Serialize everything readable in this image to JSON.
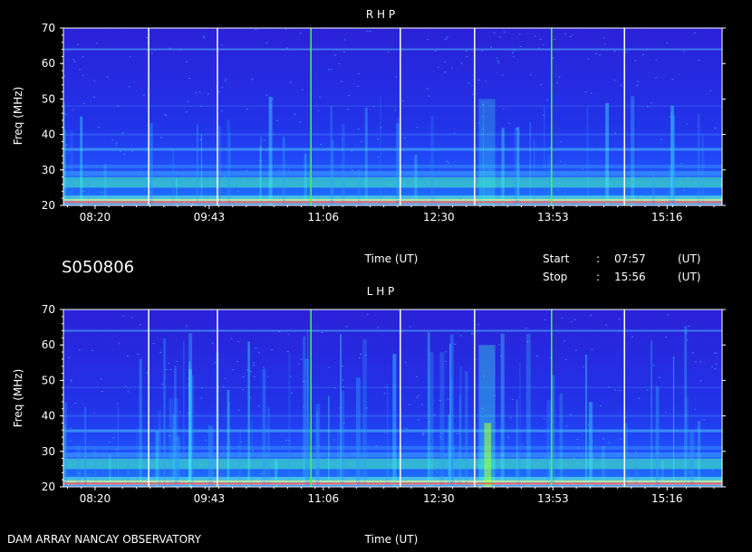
{
  "header": {
    "event_id": "S050806",
    "start_label": "Start",
    "start_sep": ":",
    "start_time": "07:57",
    "start_unit": "(UT)",
    "stop_label": "Stop",
    "stop_sep": ":",
    "stop_time": "15:56",
    "stop_unit": "(UT)"
  },
  "footer": {
    "credit": "DAM ARRAY  NANCAY OBSERVATORY"
  },
  "colors": {
    "background": "#000000",
    "spectrum_base": "#2a2ad8",
    "axis": "#ffffff"
  },
  "chart_data": [
    {
      "type": "heatmap",
      "title": "R H P",
      "xlabel": "Time (UT)",
      "ylabel": "Freq (MHz)",
      "x_ticks": [
        "08:20",
        "09:43",
        "11:06",
        "12:30",
        "13:53",
        "15:16"
      ],
      "y_ticks": [
        "20",
        "30",
        "40",
        "50",
        "60",
        "70"
      ],
      "ylim": [
        20,
        70
      ],
      "xlim": [
        "07:57",
        "15:56"
      ]
    },
    {
      "type": "heatmap",
      "title": "L H P",
      "xlabel": "Time (UT)",
      "ylabel": "Freq (MHz)",
      "x_ticks": [
        "08:20",
        "09:43",
        "11:06",
        "12:30",
        "13:53",
        "15:16"
      ],
      "y_ticks": [
        "20",
        "30",
        "40",
        "50",
        "60",
        "70"
      ],
      "ylim": [
        20,
        70
      ],
      "xlim": [
        "07:57",
        "15:56"
      ]
    }
  ]
}
